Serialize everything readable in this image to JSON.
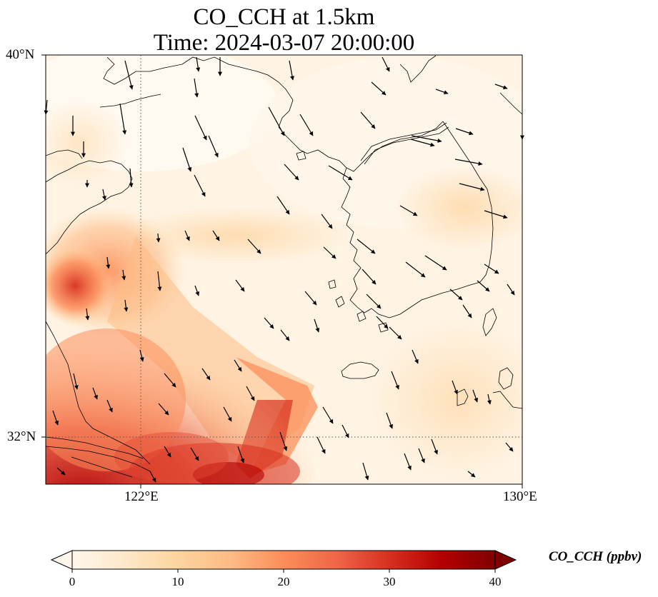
{
  "title": {
    "line1": "CO_CCH at 1.5km",
    "line2": "Time: 2024-03-07 20:00:00"
  },
  "map": {
    "lat_labels": [
      "40°N",
      "32°N"
    ],
    "lon_labels": [
      "122°E",
      "130°E"
    ],
    "extent": {
      "lon_min": 120,
      "lon_max": 130,
      "lat_min": 31,
      "lat_max": 40
    },
    "gridlines": {
      "lon": [
        122
      ],
      "lat": [
        32
      ],
      "style": "dotted"
    },
    "coastlines": true,
    "wind_vectors": true
  },
  "colorbar": {
    "label": "CO_CCH (ppbv)",
    "colormap": "OrRd",
    "ticks": [
      "0",
      "10",
      "20",
      "30",
      "40"
    ],
    "range": [
      0,
      40
    ],
    "extend": "both",
    "colors": [
      "#fff7ec",
      "#fee8c8",
      "#fdd49e",
      "#fdbb84",
      "#fc8d59",
      "#ef6548",
      "#d7301f",
      "#b30000",
      "#7f0000"
    ]
  }
}
